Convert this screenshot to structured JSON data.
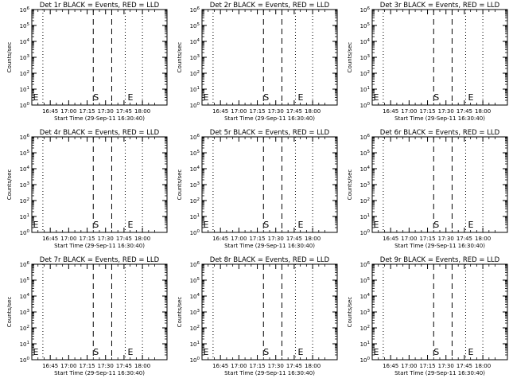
{
  "chart_data": {
    "type": "line",
    "shared": {
      "xlabel": "Start Time (29-Sep-11 16:30:40)",
      "ylabel": "Counts/sec",
      "x_tick_labels": [
        "16:45",
        "17:00",
        "17:15",
        "17:30",
        "17:45",
        "18:00"
      ],
      "x_tick_minutes_after_1630": [
        15,
        30,
        45,
        60,
        75,
        90
      ],
      "xlim_minutes_after_1630": [
        0,
        110
      ],
      "y_scale": "log",
      "ylim": [
        1,
        1000000
      ],
      "y_tick_exponents": [
        0,
        1,
        2,
        3,
        4,
        5,
        6
      ],
      "y_tick_labels": [
        "10^0",
        "10^1",
        "10^2",
        "10^3",
        "10^4",
        "10^5",
        "10^6"
      ],
      "legend": "BLACK = Events, RED = LLD",
      "series_colors": {
        "events": "#000000",
        "lld": "#ff0000"
      },
      "dotted_lines_minutes_after_1630": [
        9,
        76,
        90
      ],
      "dashed_lines_minutes_after_1630": [
        50,
        65
      ],
      "markers": [
        {
          "label": "E",
          "minute": 1
        },
        {
          "label": "S",
          "minute": 50
        },
        {
          "label": "E",
          "minute": 78
        }
      ],
      "series": []
    },
    "panels": [
      {
        "title": "Det 1r BLACK = Events, RED = LLD"
      },
      {
        "title": "Det 2r BLACK = Events, RED = LLD"
      },
      {
        "title": "Det 3r BLACK = Events, RED = LLD"
      },
      {
        "title": "Det 4r BLACK = Events, RED = LLD"
      },
      {
        "title": "Det 5r BLACK = Events, RED = LLD"
      },
      {
        "title": "Det 6r BLACK = Events, RED = LLD"
      },
      {
        "title": "Det 7r BLACK = Events, RED = LLD"
      },
      {
        "title": "Det 8r BLACK = Events, RED = LLD"
      },
      {
        "title": "Det 9r BLACK = Events, RED = LLD"
      }
    ]
  }
}
